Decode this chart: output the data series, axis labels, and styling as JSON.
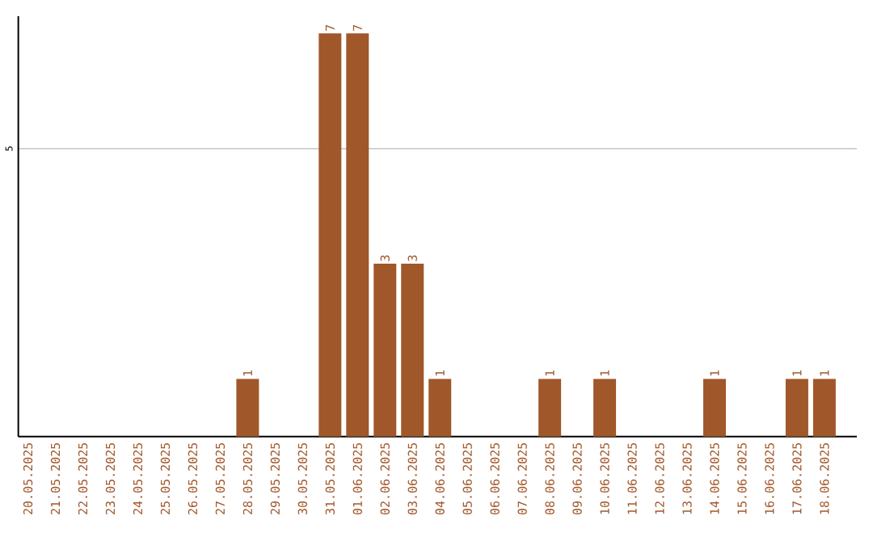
{
  "chart_data": {
    "type": "bar",
    "categories": [
      "20.05.2025",
      "21.05.2025",
      "22.05.2025",
      "23.05.2025",
      "24.05.2025",
      "25.05.2025",
      "26.05.2025",
      "27.05.2025",
      "28.05.2025",
      "29.05.2025",
      "30.05.2025",
      "31.05.2025",
      "01.06.2025",
      "02.06.2025",
      "03.06.2025",
      "04.06.2025",
      "05.06.2025",
      "06.06.2025",
      "07.06.2025",
      "08.06.2025",
      "09.06.2025",
      "10.06.2025",
      "11.06.2025",
      "12.06.2025",
      "13.06.2025",
      "14.06.2025",
      "15.06.2025",
      "16.06.2025",
      "17.06.2025",
      "18.06.2025"
    ],
    "values": [
      0,
      0,
      0,
      0,
      0,
      0,
      0,
      0,
      1,
      0,
      0,
      7,
      7,
      3,
      3,
      1,
      0,
      0,
      0,
      1,
      0,
      1,
      0,
      0,
      0,
      1,
      0,
      0,
      1,
      1
    ],
    "value_labels": [
      null,
      null,
      null,
      null,
      null,
      null,
      null,
      null,
      "1",
      null,
      null,
      "7",
      "7",
      "3",
      "3",
      "1",
      null,
      null,
      null,
      "1",
      null,
      "1",
      null,
      null,
      null,
      "1",
      null,
      null,
      "1",
      "1"
    ],
    "color": "#a0572a",
    "ylim": [
      0,
      7.3
    ],
    "yticks": [
      5
    ],
    "grid": "y"
  }
}
